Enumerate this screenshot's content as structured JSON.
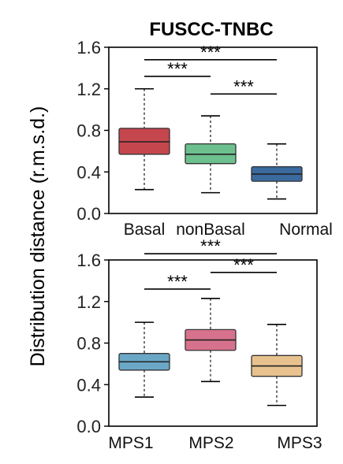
{
  "title": "FUSCC-TNBC",
  "ylabel": "Distribution distance (r.m.s.d.)",
  "chart_data": [
    {
      "type": "box",
      "title": "FUSCC-TNBC",
      "ylabel": "Distribution distance (r.m.s.d.)",
      "ylim": [
        0.0,
        1.6
      ],
      "yticks": [
        "0.0",
        "0.4",
        "0.8",
        "1.2",
        "1.6"
      ],
      "categories": [
        "Basal",
        "nonBasal",
        "Normal"
      ],
      "boxes": [
        {
          "name": "Basal",
          "min": 0.23,
          "q1": 0.57,
          "median": 0.69,
          "q3": 0.82,
          "max": 1.2,
          "color": "#c6464e"
        },
        {
          "name": "nonBasal",
          "min": 0.2,
          "q1": 0.48,
          "median": 0.57,
          "q3": 0.67,
          "max": 0.94,
          "color": "#6cc08e"
        },
        {
          "name": "Normal",
          "min": 0.14,
          "q1": 0.31,
          "median": 0.38,
          "q3": 0.45,
          "max": 0.67,
          "color": "#3a6a9e"
        }
      ],
      "significance": [
        {
          "from": 0,
          "to": 1,
          "y": 1.32,
          "label": "***"
        },
        {
          "from": 1,
          "to": 2,
          "y": 1.15,
          "label": "***"
        },
        {
          "from": 0,
          "to": 2,
          "y": 1.48,
          "label": "***"
        }
      ]
    },
    {
      "type": "box",
      "ylim": [
        0.0,
        1.6
      ],
      "yticks": [
        "0.0",
        "0.4",
        "0.8",
        "1.2",
        "1.6"
      ],
      "categories": [
        "MPS1",
        "MPS2",
        "MPS3"
      ],
      "boxes": [
        {
          "name": "MPS1",
          "min": 0.28,
          "q1": 0.54,
          "median": 0.62,
          "q3": 0.7,
          "max": 1.0,
          "color": "#6aa7c6"
        },
        {
          "name": "MPS2",
          "min": 0.43,
          "q1": 0.73,
          "median": 0.83,
          "q3": 0.93,
          "max": 1.23,
          "color": "#d7728c"
        },
        {
          "name": "MPS3",
          "min": 0.2,
          "q1": 0.48,
          "median": 0.58,
          "q3": 0.68,
          "max": 0.98,
          "color": "#e8c28e"
        }
      ],
      "significance": [
        {
          "from": 0,
          "to": 1,
          "y": 1.32,
          "label": "***"
        },
        {
          "from": 1,
          "to": 2,
          "y": 1.48,
          "label": "***"
        },
        {
          "from": 0,
          "to": 2,
          "y": 1.66,
          "label": "***"
        }
      ]
    }
  ]
}
